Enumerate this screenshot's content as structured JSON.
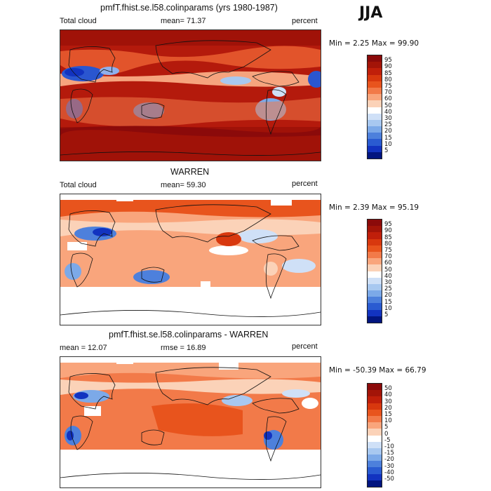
{
  "season": "JJA",
  "panels": [
    {
      "title": "pmfT.fhist.se.l58.colinparams (yrs 1980-1987)",
      "left_label": "Total cloud",
      "center_label": "mean=  71.37",
      "right_label": "percent",
      "minmax": "Min =    2.25 Max =  99.90",
      "colorbar": {
        "labels": [
          "95",
          "90",
          "85",
          "80",
          "75",
          "70",
          "60",
          "50",
          "40",
          "30",
          "25",
          "20",
          "15",
          "10",
          "5"
        ],
        "colors": [
          "#8b0a0a",
          "#a31408",
          "#c01f0a",
          "#d8380e",
          "#e8541d",
          "#f27a49",
          "#f9a57c",
          "#fbd2b8",
          "#ffffff",
          "#cfe0f7",
          "#a8c8f0",
          "#7ca9e8",
          "#4d80dc",
          "#2a5bd1",
          "#1233c0",
          "#02157f"
        ]
      }
    },
    {
      "title": "WARREN",
      "left_label": "Total cloud",
      "center_label": "mean=  59.30",
      "right_label": "percent",
      "minmax": "Min =    2.39 Max =  95.19",
      "colorbar": {
        "labels": [
          "95",
          "90",
          "85",
          "80",
          "75",
          "70",
          "60",
          "50",
          "40",
          "30",
          "25",
          "20",
          "15",
          "10",
          "5"
        ],
        "colors": [
          "#8b0a0a",
          "#a31408",
          "#c01f0a",
          "#d8380e",
          "#e8541d",
          "#f27a49",
          "#f9a57c",
          "#fbd2b8",
          "#ffffff",
          "#cfe0f7",
          "#a8c8f0",
          "#7ca9e8",
          "#4d80dc",
          "#2a5bd1",
          "#1233c0",
          "#02157f"
        ]
      }
    },
    {
      "title": "pmfT.fhist.se.l58.colinparams - WARREN",
      "left_label": "mean =  12.07",
      "center_label": "rmse =  16.89",
      "right_label": "percent",
      "minmax": "Min = -50.39 Max =  66.79",
      "colorbar": {
        "labels": [
          "50",
          "40",
          "30",
          "20",
          "15",
          "10",
          "5",
          "0",
          "-5",
          "-10",
          "-15",
          "-20",
          "-30",
          "-40",
          "-50"
        ],
        "colors": [
          "#8b0a0a",
          "#a31408",
          "#c01f0a",
          "#d8380e",
          "#e8541d",
          "#f27a49",
          "#f9a57c",
          "#fbd2b8",
          "#ffffff",
          "#cfe0f7",
          "#a8c8f0",
          "#7ca9e8",
          "#4d80dc",
          "#2a5bd1",
          "#1233c0",
          "#02157f"
        ]
      }
    }
  ]
}
